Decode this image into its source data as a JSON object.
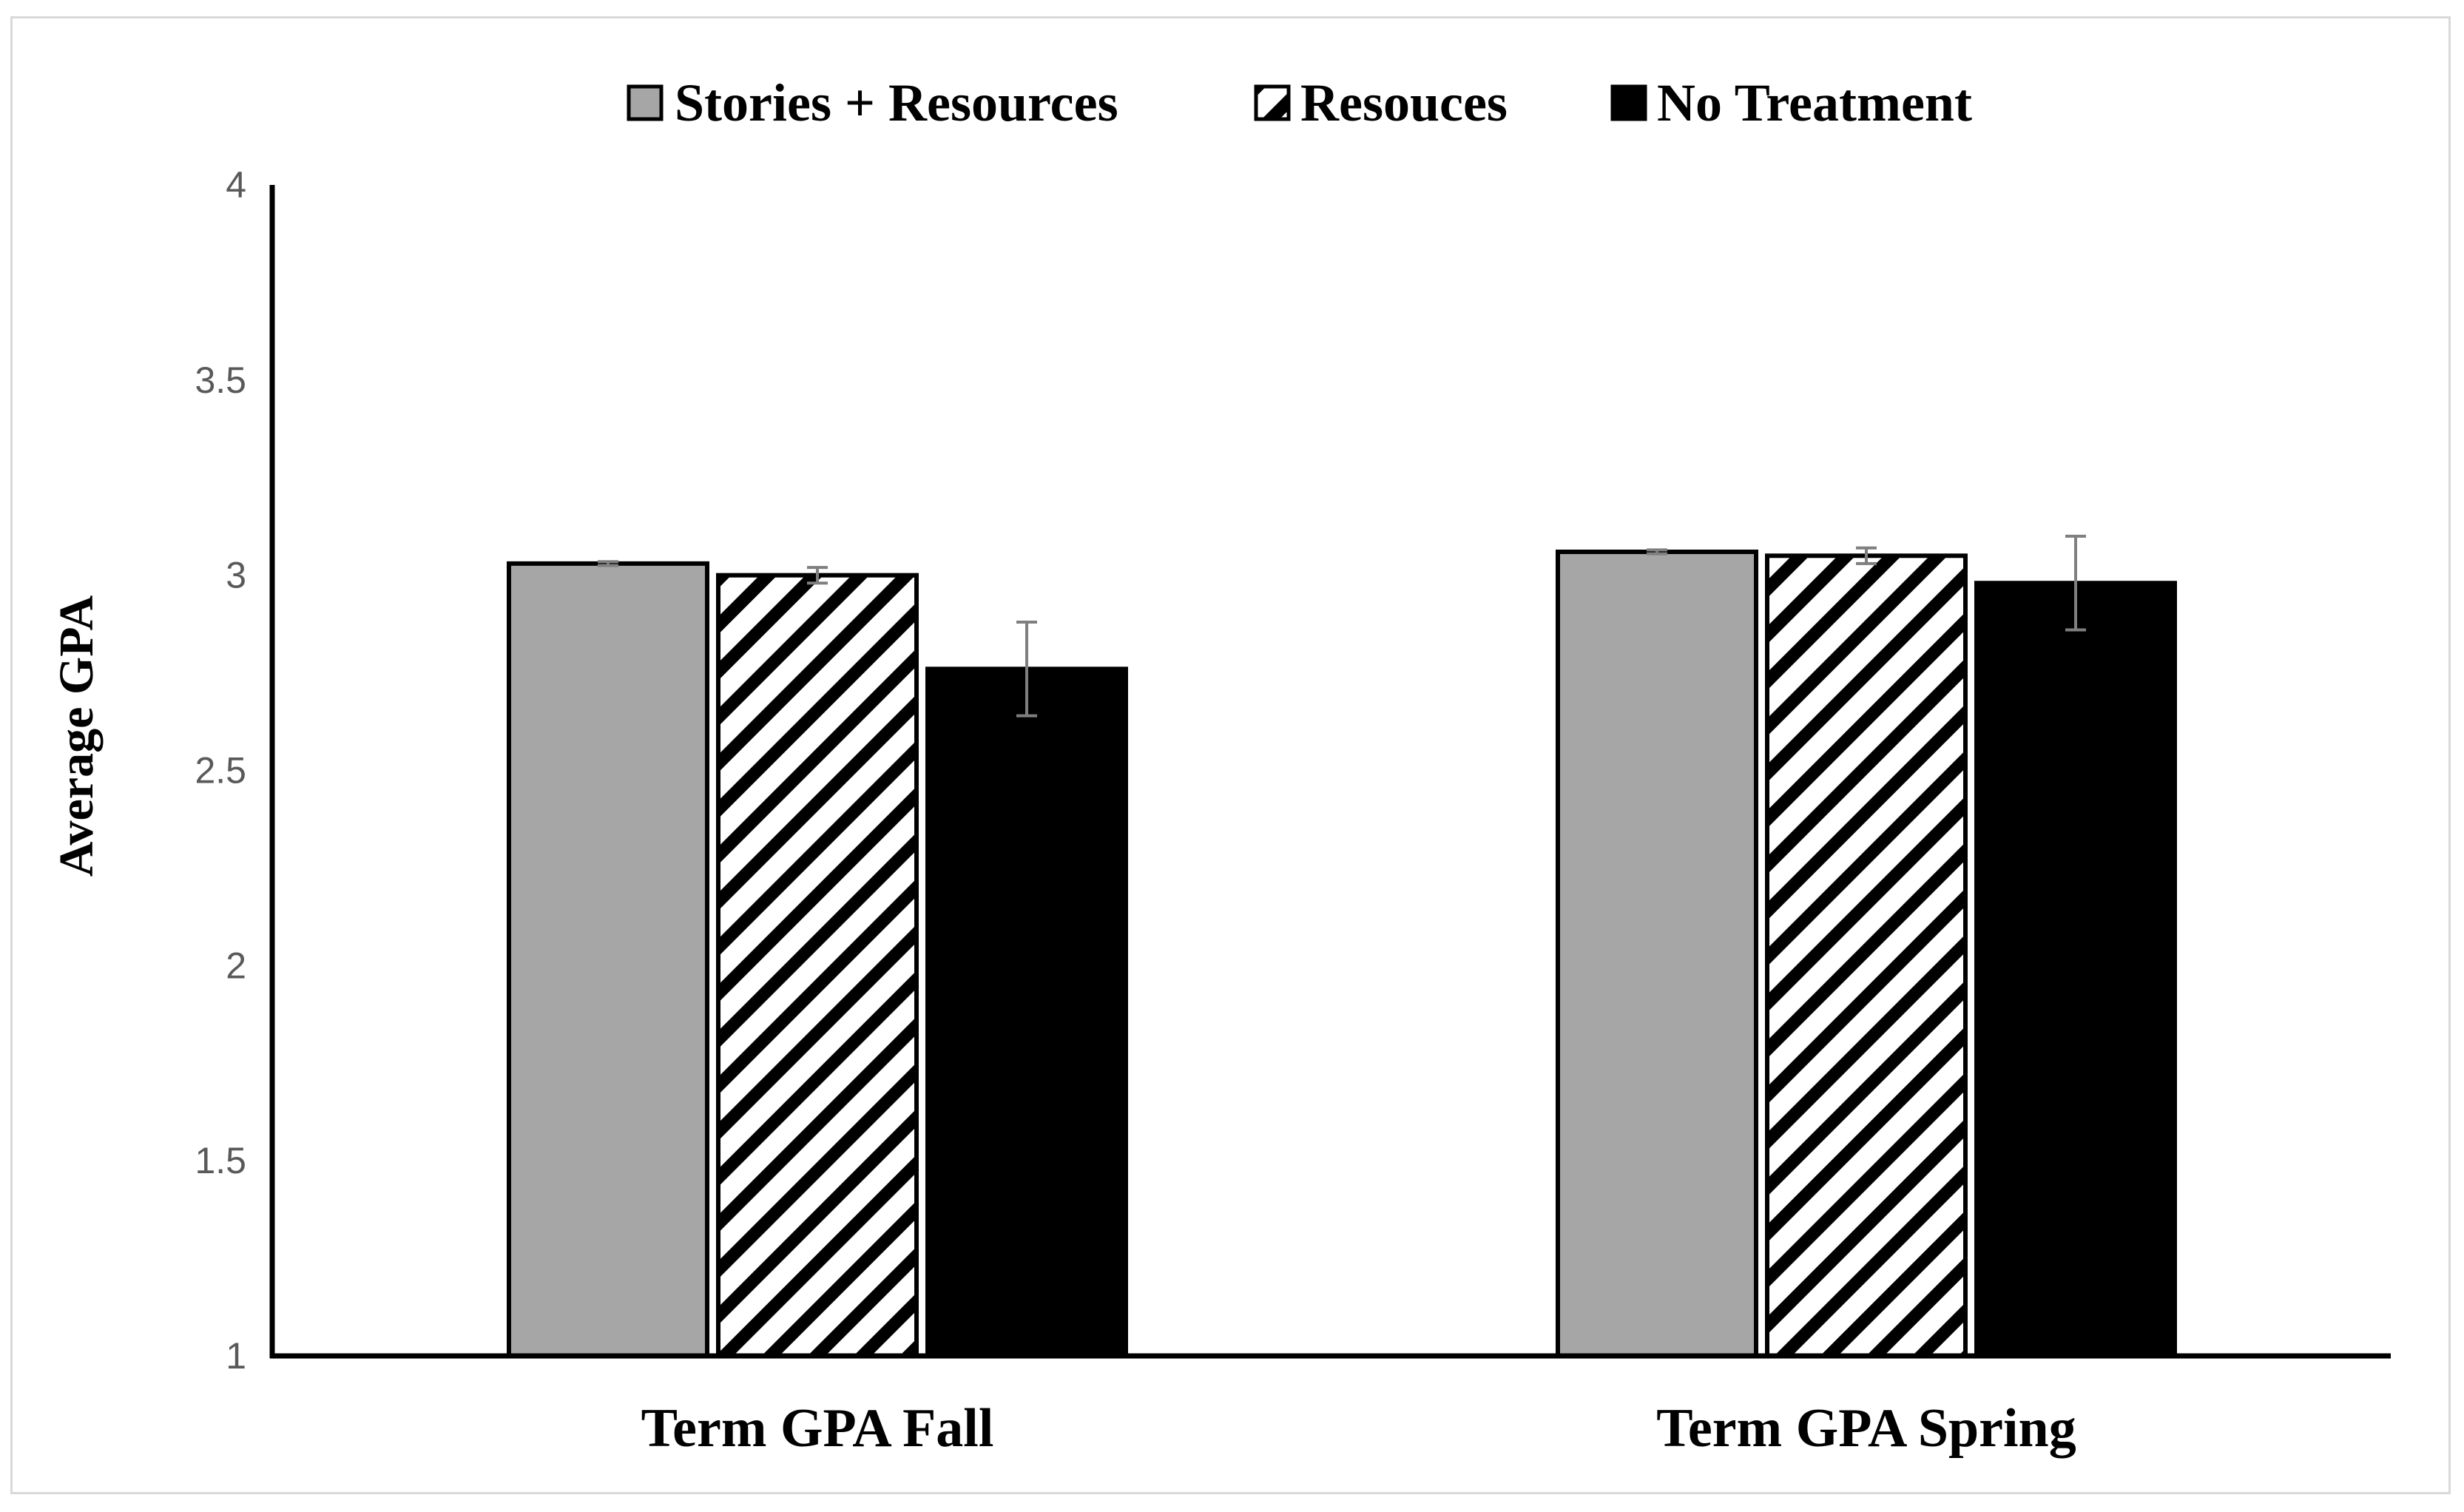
{
  "chart_data": {
    "type": "bar",
    "title": "",
    "xlabel": "",
    "ylabel": "Average GPA",
    "ylim": [
      1,
      4
    ],
    "yticks": [
      "1",
      "1.5",
      "2",
      "2.5",
      "3",
      "3.5",
      "4"
    ],
    "categories": [
      "Term GPA Fall",
      "Term GPA Spring"
    ],
    "legend_position": "top",
    "grid": false,
    "series": [
      {
        "name": "Stories + Resources",
        "fill": "#a6a6a6",
        "pattern": "solid",
        "values": [
          3.03,
          3.06
        ],
        "errors": [
          0.005,
          0.005
        ]
      },
      {
        "name": "Resouces",
        "fill": "#ffffff",
        "pattern": "diagonal-hatch",
        "values": [
          3.0,
          3.05
        ],
        "errors": [
          0.02,
          0.02
        ]
      },
      {
        "name": "No Treatment",
        "fill": "#000000",
        "pattern": "solid",
        "values": [
          2.76,
          2.98
        ],
        "errors": [
          0.12,
          0.12
        ]
      }
    ]
  }
}
